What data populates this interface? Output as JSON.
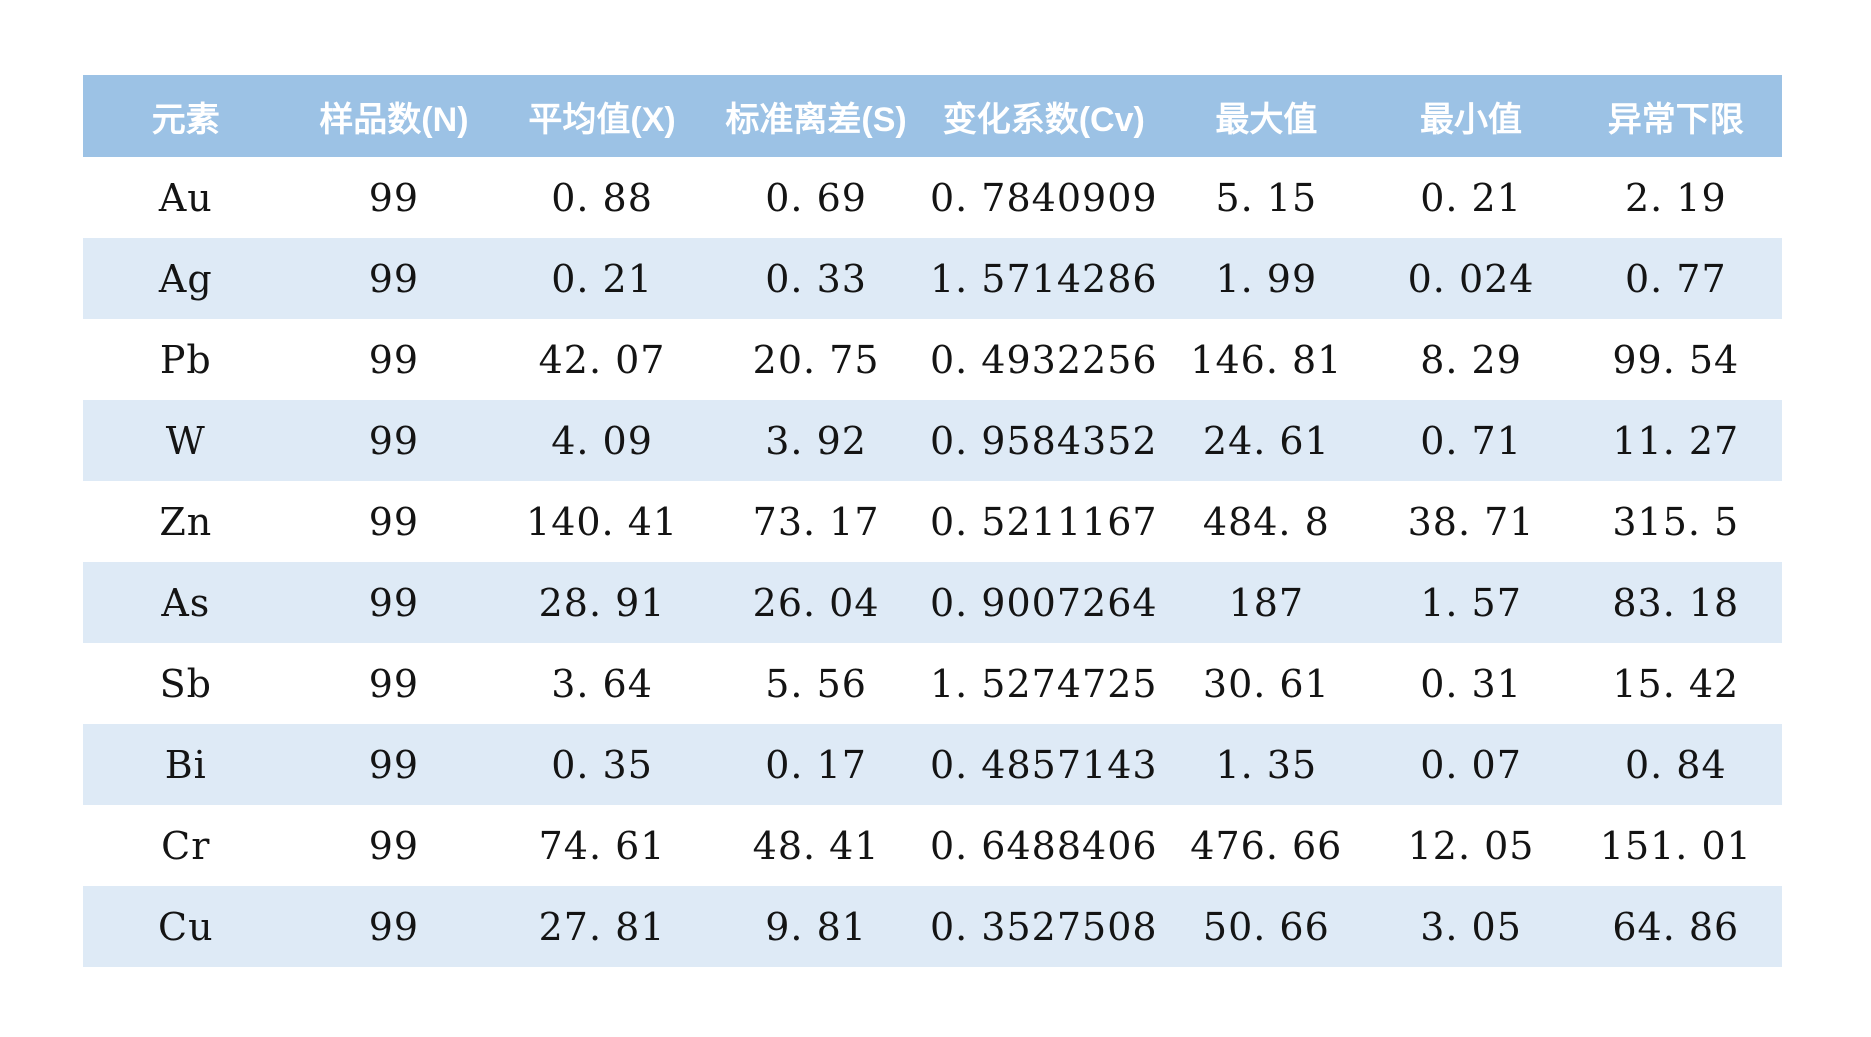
{
  "chart_data": {
    "type": "table",
    "title": "",
    "columns": [
      "元素",
      "样品数(N)",
      "平均值(X)",
      "标准离差(S)",
      "变化系数(Cv)",
      "最大值",
      "最小值",
      "异常下限"
    ],
    "rows": [
      [
        "Au",
        "99",
        "0.88",
        "0.69",
        "0.7840909",
        "5.15",
        "0.21",
        "2.19"
      ],
      [
        "Ag",
        "99",
        "0.21",
        "0.33",
        "1.5714286",
        "1.99",
        "0.024",
        "0.77"
      ],
      [
        "Pb",
        "99",
        "42.07",
        "20.75",
        "0.4932256",
        "146.81",
        "8.29",
        "99.54"
      ],
      [
        "W",
        "99",
        "4.09",
        "3.92",
        "0.9584352",
        "24.61",
        "0.71",
        "11.27"
      ],
      [
        "Zn",
        "99",
        "140.41",
        "73.17",
        "0.5211167",
        "484.8",
        "38.71",
        "315.5"
      ],
      [
        "As",
        "99",
        "28.91",
        "26.04",
        "0.9007264",
        "187",
        "1.57",
        "83.18"
      ],
      [
        "Sb",
        "99",
        "3.64",
        "5.56",
        "1.5274725",
        "30.61",
        "0.31",
        "15.42"
      ],
      [
        "Bi",
        "99",
        "0.35",
        "0.17",
        "0.4857143",
        "1.35",
        "0.07",
        "0.84"
      ],
      [
        "Cr",
        "99",
        "74.61",
        "48.41",
        "0.6488406",
        "476.66",
        "12.05",
        "151.01"
      ],
      [
        "Cu",
        "99",
        "27.81",
        "9.81",
        "0.3527508",
        "50.66",
        "3.05",
        "64.86"
      ]
    ],
    "column_widths_percent": [
      12.1,
      12.4,
      12.1,
      13.1,
      13.7,
      12.5,
      11.6,
      12.5
    ],
    "layout_hints": {
      "header_row": true,
      "banded_rows": true,
      "grid": "none",
      "alignment": "center"
    }
  },
  "style": {
    "page_bg": "#FFFFFF",
    "header_bg": "#9CC2E5",
    "header_text": "#FFFFFF",
    "stripe_bg": "#DEEAF6",
    "row_bg": "#FFFFFF",
    "cell_text": "#141414"
  }
}
